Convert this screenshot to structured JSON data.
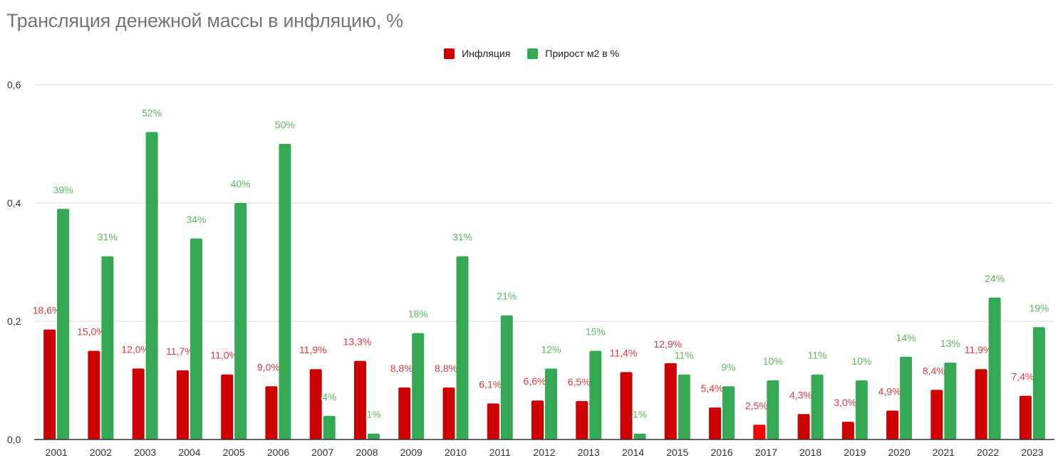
{
  "chart_data": {
    "type": "bar",
    "title": "Трансляция денежной массы в инфляцию, %",
    "xlabel": "",
    "ylabel": "",
    "ylim": [
      0,
      0.6
    ],
    "yticks": [
      "0,0",
      "0,2",
      "0,4",
      "0,6"
    ],
    "ytick_values": [
      0,
      0.2,
      0.4,
      0.6
    ],
    "grid": true,
    "legend_position": "top",
    "categories": [
      "2001",
      "2002",
      "2003",
      "2004",
      "2005",
      "2006",
      "2007",
      "2008",
      "2009",
      "2010",
      "2011",
      "2012",
      "2013",
      "2014",
      "2015",
      "2016",
      "2017",
      "2018",
      "2019",
      "2020",
      "2021",
      "2022",
      "2023"
    ],
    "series": [
      {
        "name": "Инфляция",
        "color": "#cc0000",
        "values": [
          0.186,
          0.15,
          0.12,
          0.117,
          0.11,
          0.09,
          0.119,
          0.133,
          0.088,
          0.088,
          0.061,
          0.066,
          0.065,
          0.114,
          0.129,
          0.054,
          0.025,
          0.043,
          0.03,
          0.049,
          0.084,
          0.119,
          0.074
        ],
        "labels": [
          "18,6%",
          "15,0%",
          "12,0%",
          "11,7%",
          "11,0%",
          "9,0%",
          "11,9%",
          "13,3%",
          "8,8%",
          "8,8%",
          "6,1%",
          "6,6%",
          "6,5%",
          "11,4%",
          "12,9%",
          "5,4%",
          "2,5%",
          "4,3%",
          "3,0%",
          "4,9%",
          "8,4%",
          "11,9%",
          "7,4%"
        ],
        "label_color": "#e0393e"
      },
      {
        "name": "Прирост м2 в %",
        "color": "#34a853",
        "values": [
          0.39,
          0.31,
          0.52,
          0.34,
          0.4,
          0.5,
          0.04,
          0.01,
          0.18,
          0.31,
          0.21,
          0.12,
          0.15,
          0.01,
          0.11,
          0.09,
          0.1,
          0.11,
          0.1,
          0.14,
          0.13,
          0.24,
          0.19
        ],
        "labels": [
          "39%",
          "31%",
          "52%",
          "34%",
          "40%",
          "50%",
          "4%",
          "1%",
          "18%",
          "31%",
          "21%",
          "12%",
          "15%",
          "1%",
          "11%",
          "9%",
          "10%",
          "11%",
          "10%",
          "14%",
          "13%",
          "24%",
          "19%"
        ],
        "label_color": "#5cb85c"
      }
    ],
    "highlight": {
      "category": "2017",
      "series": "Инфляция",
      "color": "#ff0000"
    }
  },
  "legend": {
    "items": [
      {
        "label": "Инфляция",
        "color": "#cc0000"
      },
      {
        "label": "Прирост м2 в %",
        "color": "#34a853"
      }
    ]
  }
}
